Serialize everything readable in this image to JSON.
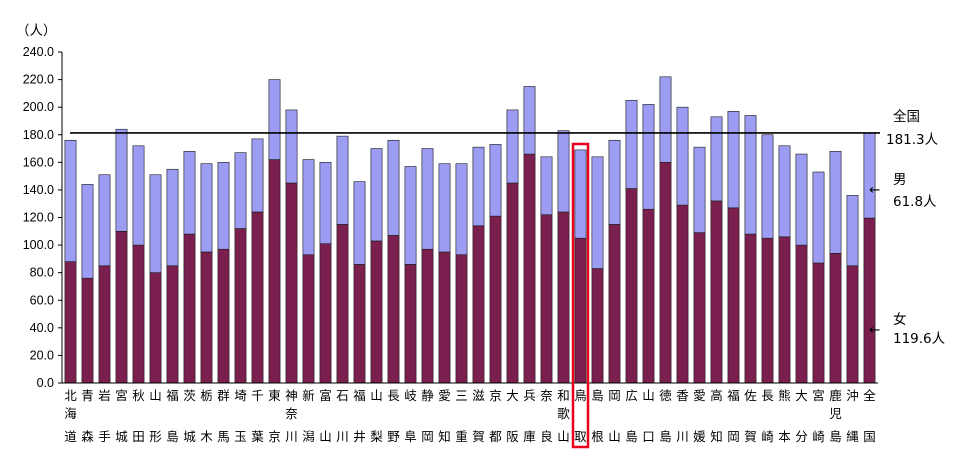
{
  "chart_data": {
    "type": "bar",
    "stacked": true,
    "title": "",
    "ylabel": "（人）",
    "xlabel": "",
    "ylim": [
      0,
      240
    ],
    "ytick_step": 20,
    "ytick_labels": [
      "0.0",
      "20.0",
      "40.0",
      "60.0",
      "80.0",
      "100.0",
      "120.0",
      "140.0",
      "160.0",
      "180.0",
      "200.0",
      "220.0",
      "240.0"
    ],
    "categories": [
      [
        "北",
        "海",
        "道"
      ],
      [
        "青",
        "",
        "森"
      ],
      [
        "岩",
        "",
        "手"
      ],
      [
        "宮",
        "",
        "城"
      ],
      [
        "秋",
        "",
        "田"
      ],
      [
        "山",
        "",
        "形"
      ],
      [
        "福",
        "",
        "島"
      ],
      [
        "茨",
        "",
        "城"
      ],
      [
        "栃",
        "",
        "木"
      ],
      [
        "群",
        "",
        "馬"
      ],
      [
        "埼",
        "",
        "玉"
      ],
      [
        "千",
        "",
        "葉"
      ],
      [
        "東",
        "",
        "京"
      ],
      [
        "神",
        "奈",
        "川"
      ],
      [
        "新",
        "",
        "潟"
      ],
      [
        "富",
        "",
        "山"
      ],
      [
        "石",
        "",
        "川"
      ],
      [
        "福",
        "",
        "井"
      ],
      [
        "山",
        "",
        "梨"
      ],
      [
        "長",
        "",
        "野"
      ],
      [
        "岐",
        "",
        "阜"
      ],
      [
        "静",
        "",
        "岡"
      ],
      [
        "愛",
        "",
        "知"
      ],
      [
        "三",
        "",
        "重"
      ],
      [
        "滋",
        "",
        "賀"
      ],
      [
        "京",
        "",
        "都"
      ],
      [
        "大",
        "",
        "阪"
      ],
      [
        "兵",
        "",
        "庫"
      ],
      [
        "奈",
        "",
        "良"
      ],
      [
        "和",
        "歌",
        "山"
      ],
      [
        "鳥",
        "",
        "取"
      ],
      [
        "島",
        "",
        "根"
      ],
      [
        "岡",
        "",
        "山"
      ],
      [
        "広",
        "",
        "島"
      ],
      [
        "山",
        "",
        "口"
      ],
      [
        "徳",
        "",
        "島"
      ],
      [
        "香",
        "",
        "川"
      ],
      [
        "愛",
        "",
        "媛"
      ],
      [
        "高",
        "",
        "知"
      ],
      [
        "福",
        "",
        "岡"
      ],
      [
        "佐",
        "",
        "賀"
      ],
      [
        "長",
        "",
        "崎"
      ],
      [
        "熊",
        "",
        "本"
      ],
      [
        "大",
        "",
        "分"
      ],
      [
        "宮",
        "",
        "崎"
      ],
      [
        "鹿",
        "児",
        "島"
      ],
      [
        "沖",
        "",
        "縄"
      ],
      [
        "全",
        "",
        "国"
      ]
    ],
    "series": [
      {
        "name": "女",
        "color": "#7b1f4e",
        "values": [
          88,
          76,
          85,
          110,
          100,
          80,
          85,
          108,
          95,
          97,
          112,
          124,
          162,
          145,
          93,
          101,
          115,
          86,
          103,
          107,
          86,
          97,
          95,
          93,
          114,
          121,
          145,
          166,
          122,
          124,
          105,
          83,
          115,
          141,
          126,
          160,
          129,
          109,
          132,
          127,
          108,
          105,
          106,
          100,
          87,
          94,
          85,
          119.6
        ]
      },
      {
        "name": "男",
        "color": "#9c9cf2",
        "values": [
          88,
          68,
          66,
          74,
          72,
          71,
          70,
          60,
          64,
          63,
          55,
          53,
          58,
          53,
          69,
          59,
          64,
          60,
          67,
          69,
          71,
          73,
          64,
          66,
          57,
          52,
          53,
          49,
          42,
          59,
          64,
          81,
          61,
          64,
          76,
          62,
          71,
          62,
          61,
          70,
          86,
          75,
          66,
          66,
          66,
          74,
          51,
          61.8
        ]
      }
    ],
    "reference_line": {
      "value": 181.3,
      "label": "全国",
      "value_label": "181.3人"
    },
    "annotations": [
      {
        "label": "男",
        "value_label": "61.8人"
      },
      {
        "label": "女",
        "value_label": "119.6人"
      }
    ],
    "highlight": {
      "category": "鳥取",
      "color": "#e8001c"
    },
    "colors": {
      "axis": "#000000",
      "bar_outline": "#1a1a1a"
    }
  }
}
